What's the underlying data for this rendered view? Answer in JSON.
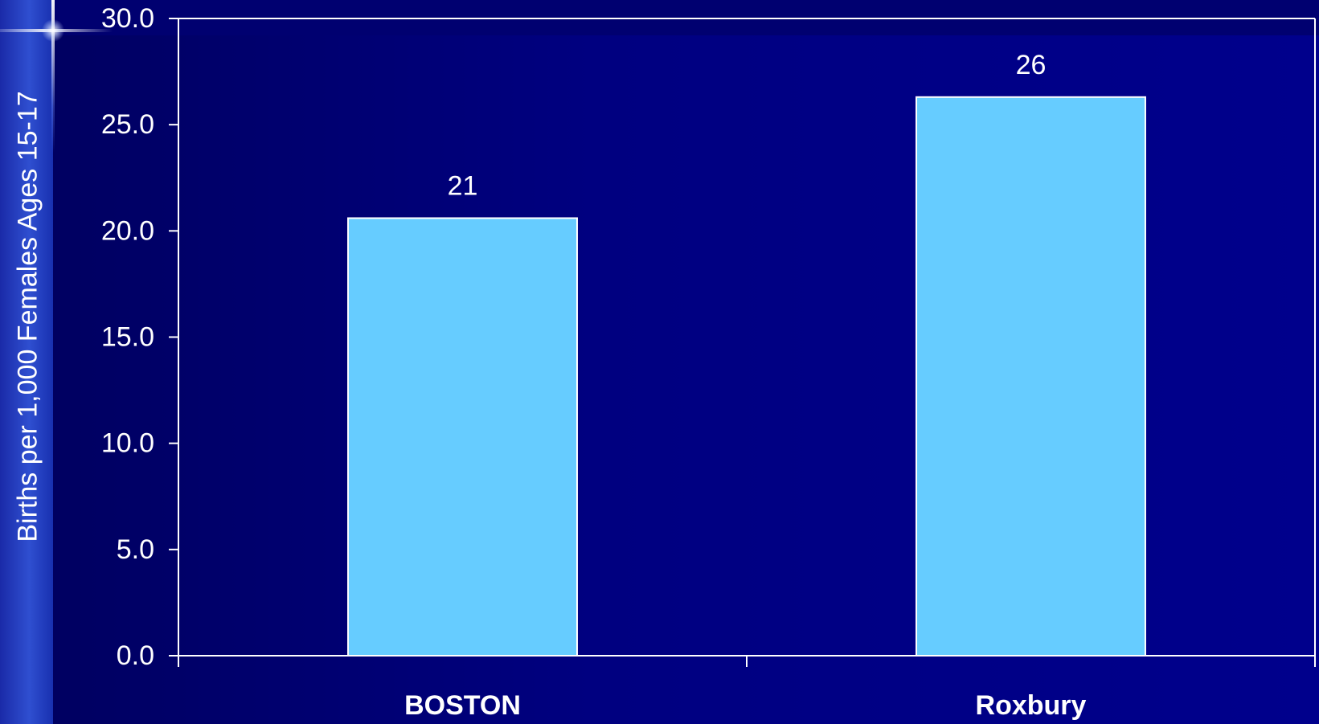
{
  "chart_data": {
    "type": "bar",
    "title": "",
    "xlabel": "",
    "ylabel": "Births per 1,000 Females Ages 15-17",
    "categories": [
      "BOSTON",
      "Roxbury"
    ],
    "values": [
      20.6,
      26.3
    ],
    "data_labels": [
      "21",
      "26"
    ],
    "ylim": [
      0,
      30
    ],
    "yticks": [
      0,
      5,
      10,
      15,
      20,
      25,
      30
    ],
    "ytick_labels": [
      "0.0",
      "5.0",
      "10.0",
      "15.0",
      "20.0",
      "25.0",
      "30.0"
    ],
    "grid": false,
    "legend": "none"
  },
  "colors": {
    "background": "#000080",
    "bar": "#66ccff",
    "axis": "#ffffff",
    "text": "#ffffff"
  }
}
